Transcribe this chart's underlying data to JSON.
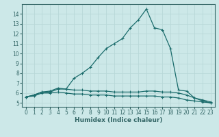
{
  "xlabel": "Humidex (Indice chaleur)",
  "bg_color": "#cce8e8",
  "grid_color": "#b8d8d8",
  "line_color": "#1a6b6b",
  "xlim": [
    -0.5,
    23.5
  ],
  "ylim": [
    4.6,
    15.0
  ],
  "xticks": [
    0,
    1,
    2,
    3,
    4,
    5,
    6,
    7,
    8,
    9,
    10,
    11,
    12,
    13,
    14,
    15,
    16,
    17,
    18,
    19,
    20,
    21,
    22,
    23
  ],
  "yticks": [
    5,
    6,
    7,
    8,
    9,
    10,
    11,
    12,
    13,
    14
  ],
  "series": {
    "main": {
      "x": [
        0,
        1,
        2,
        3,
        4,
        5,
        6,
        7,
        8,
        9,
        10,
        11,
        12,
        13,
        14,
        15,
        16,
        17,
        18,
        19,
        20,
        21,
        22,
        23
      ],
      "y": [
        5.6,
        5.8,
        6.1,
        6.1,
        6.4,
        6.4,
        7.5,
        8.0,
        8.6,
        9.6,
        10.5,
        11.0,
        11.5,
        12.6,
        13.4,
        14.5,
        12.6,
        12.4,
        10.5,
        6.3,
        6.2,
        5.5,
        5.2,
        5.0
      ]
    },
    "upper": {
      "x": [
        0,
        1,
        2,
        3,
        4,
        5,
        6,
        7,
        8,
        9,
        10,
        11,
        12,
        13,
        14,
        15,
        16,
        17,
        18,
        19,
        20,
        21,
        22,
        23
      ],
      "y": [
        5.6,
        5.8,
        6.1,
        6.2,
        6.5,
        6.4,
        6.3,
        6.3,
        6.2,
        6.2,
        6.2,
        6.1,
        6.1,
        6.1,
        6.1,
        6.2,
        6.2,
        6.1,
        6.1,
        6.0,
        5.8,
        5.5,
        5.3,
        5.1
      ]
    },
    "lower": {
      "x": [
        0,
        1,
        2,
        3,
        4,
        5,
        6,
        7,
        8,
        9,
        10,
        11,
        12,
        13,
        14,
        15,
        16,
        17,
        18,
        19,
        20,
        21,
        22,
        23
      ],
      "y": [
        5.6,
        5.7,
        6.0,
        6.0,
        6.1,
        6.0,
        5.9,
        5.9,
        5.8,
        5.8,
        5.8,
        5.7,
        5.7,
        5.7,
        5.7,
        5.7,
        5.7,
        5.6,
        5.6,
        5.5,
        5.3,
        5.2,
        5.1,
        5.0
      ]
    }
  },
  "tick_fontsize": 5.5,
  "xlabel_fontsize": 6.5,
  "spine_color": "#336666"
}
